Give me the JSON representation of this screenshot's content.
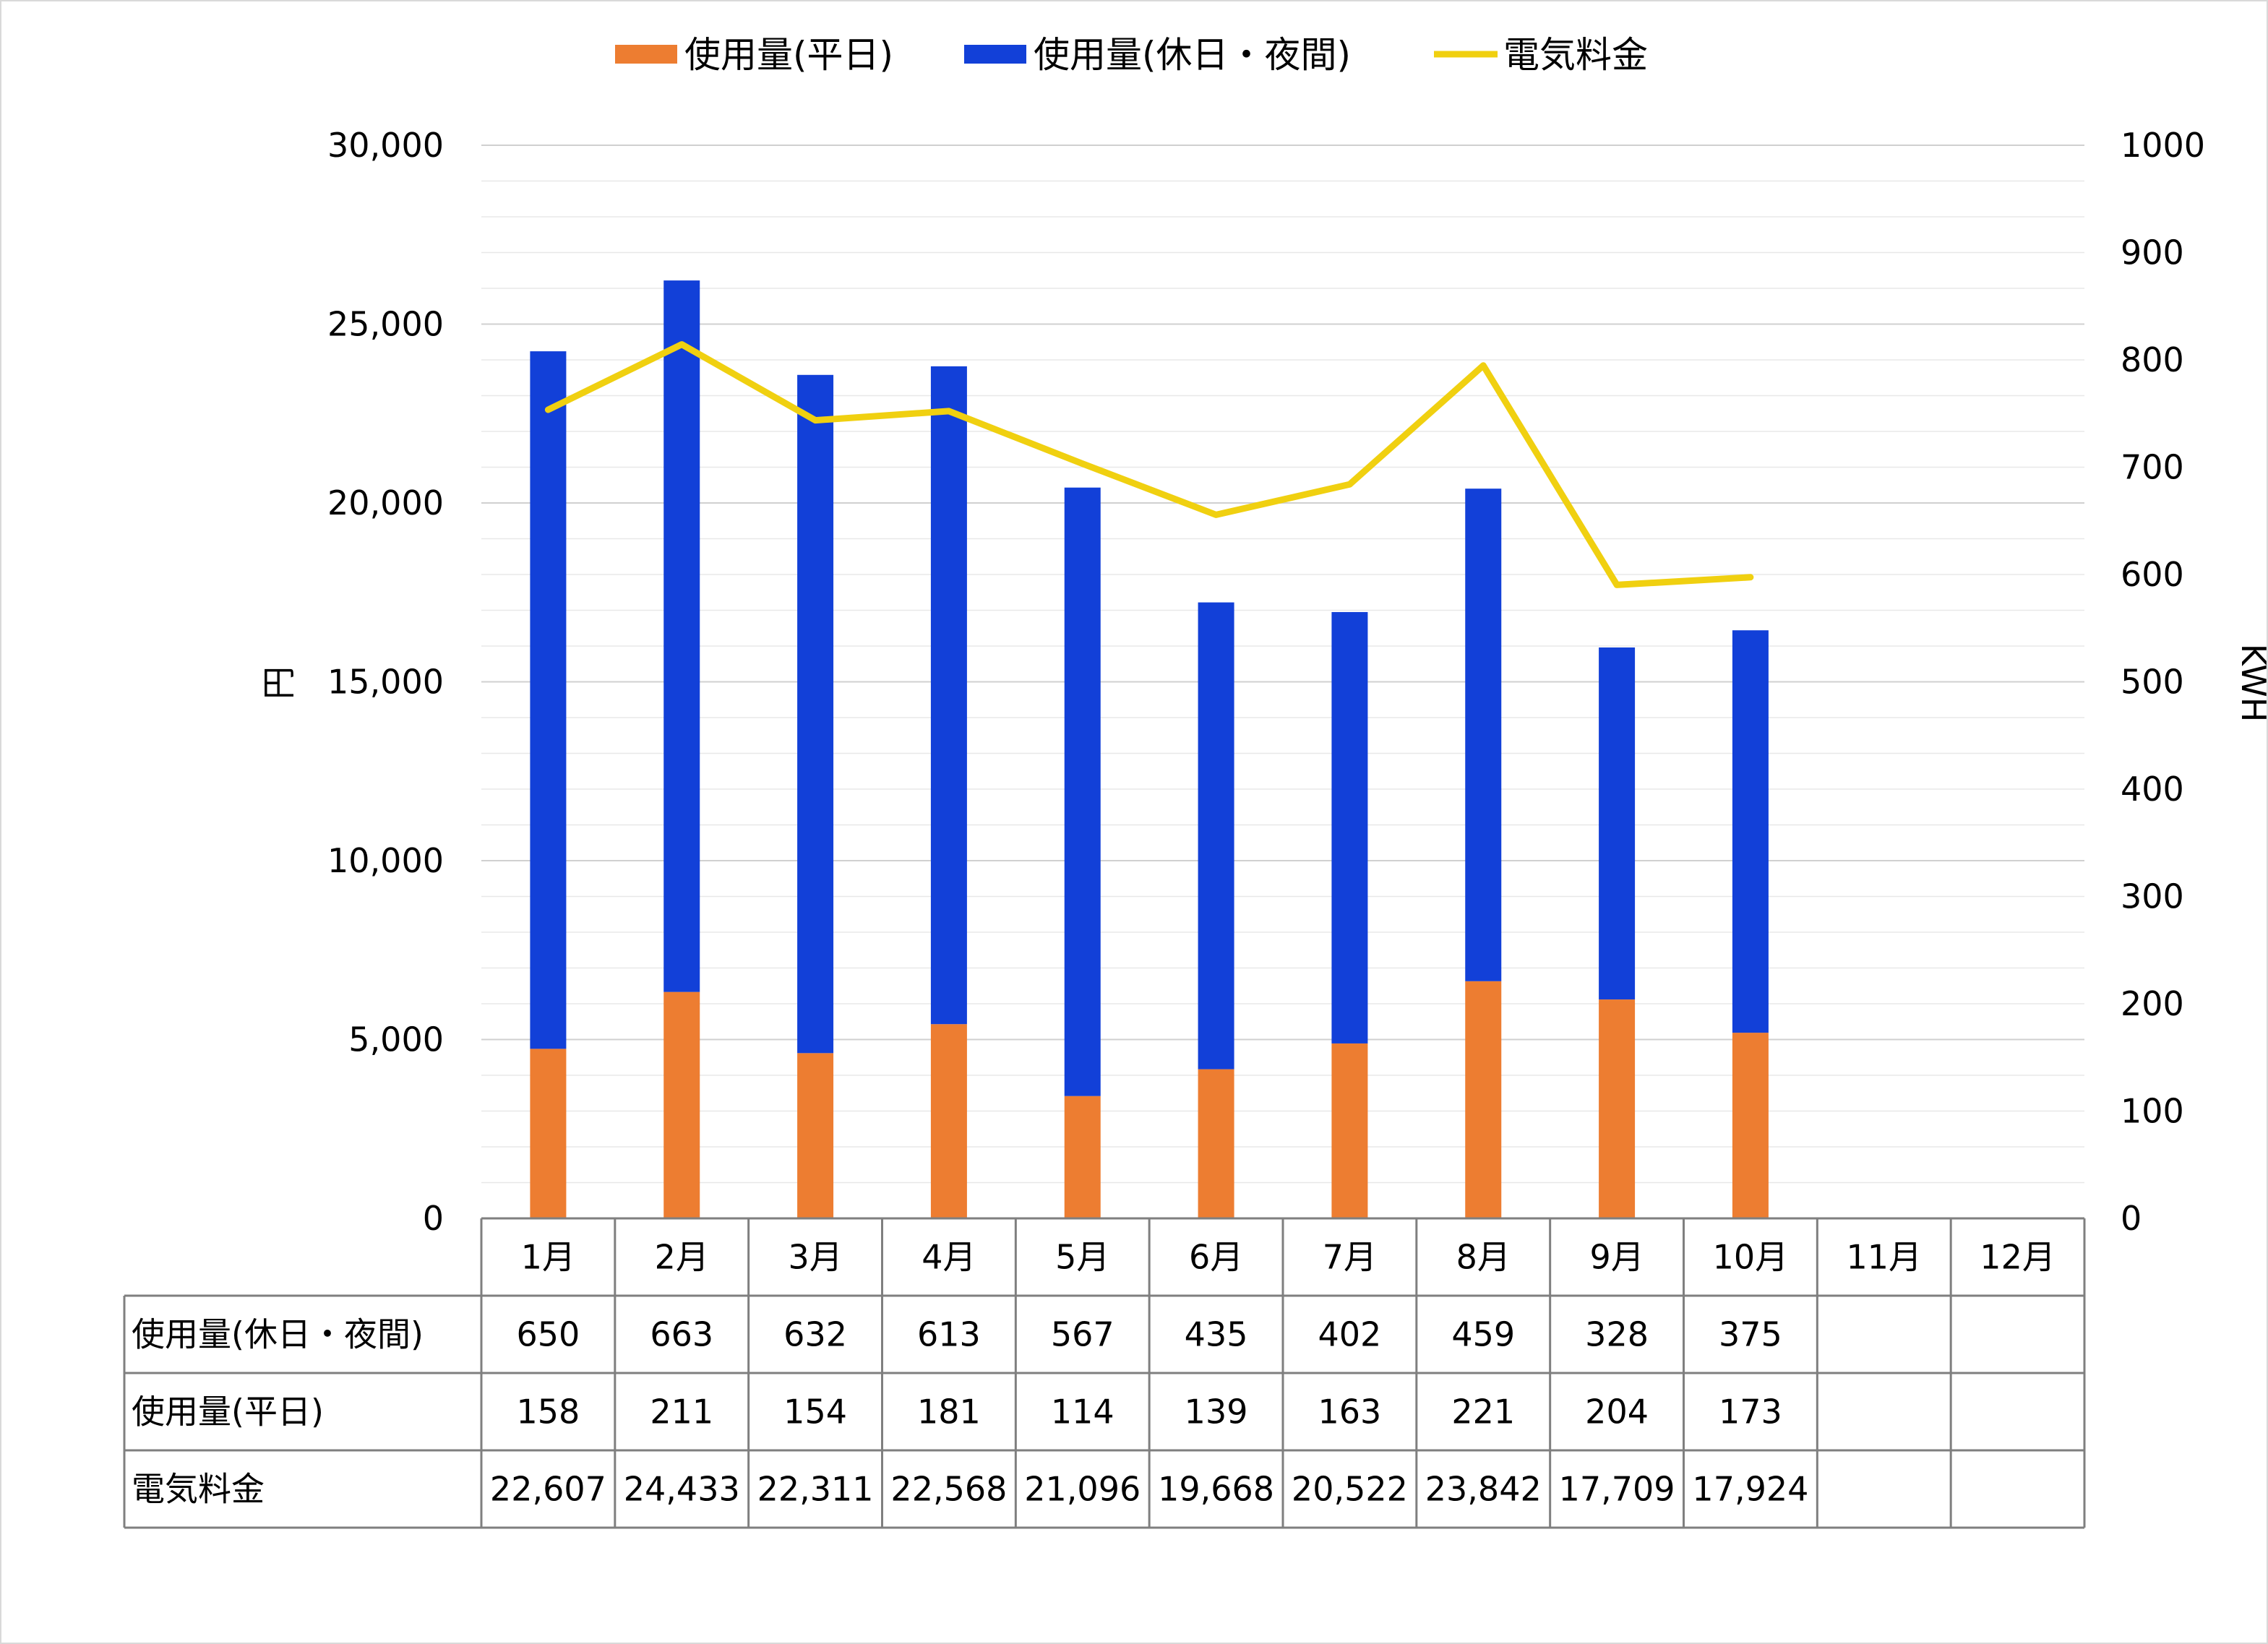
{
  "chart_data": {
    "type": "bar",
    "stacked": true,
    "categories": [
      "1月",
      "2月",
      "3月",
      "4月",
      "5月",
      "6月",
      "7月",
      "8月",
      "9月",
      "10月",
      "11月",
      "12月"
    ],
    "series": [
      {
        "name": "使用量(平日)",
        "axis": "right",
        "color": "#ed7d31",
        "values": [
          158,
          211,
          154,
          181,
          114,
          139,
          163,
          221,
          204,
          173,
          null,
          null
        ]
      },
      {
        "name": "使用量(休日・夜間)",
        "axis": "right",
        "color": "#1240d8",
        "values": [
          650,
          663,
          632,
          613,
          567,
          435,
          402,
          459,
          328,
          375,
          null,
          null
        ]
      },
      {
        "name": "電気料金",
        "type": "line",
        "axis": "left",
        "color": "#f0d010",
        "values": [
          22607,
          24433,
          22311,
          22568,
          21096,
          19668,
          20522,
          23842,
          17709,
          17924,
          null,
          null
        ]
      }
    ],
    "y_left": {
      "label": "円",
      "min": 0,
      "max": 30000,
      "ticks": [
        "0",
        "5,000",
        "10,000",
        "15,000",
        "20,000",
        "25,000",
        "30,000"
      ]
    },
    "y_right": {
      "label": "KWH",
      "min": 0,
      "max": 1000,
      "ticks": [
        "0",
        "100",
        "200",
        "300",
        "400",
        "500",
        "600",
        "700",
        "800",
        "900",
        "1000"
      ]
    },
    "legend_position": "top",
    "grid": true,
    "data_table": {
      "rows": [
        {
          "label": "使用量(休日・夜間)",
          "cells": [
            "650",
            "663",
            "632",
            "613",
            "567",
            "435",
            "402",
            "459",
            "328",
            "375",
            "",
            ""
          ]
        },
        {
          "label": "使用量(平日)",
          "cells": [
            "158",
            "211",
            "154",
            "181",
            "114",
            "139",
            "163",
            "221",
            "204",
            "173",
            "",
            ""
          ]
        },
        {
          "label": "電気料金",
          "cells": [
            "22,607",
            "24,433",
            "22,311",
            "22,568",
            "21,096",
            "19,668",
            "20,522",
            "23,842",
            "17,709",
            "17,924",
            "",
            ""
          ]
        }
      ]
    }
  }
}
